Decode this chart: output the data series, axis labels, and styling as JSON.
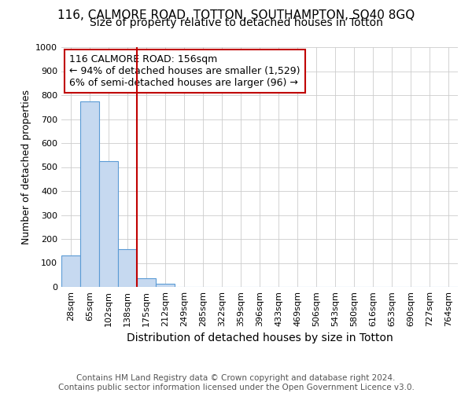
{
  "title": "116, CALMORE ROAD, TOTTON, SOUTHAMPTON, SO40 8GQ",
  "subtitle": "Size of property relative to detached houses in Totton",
  "xlabel": "Distribution of detached houses by size in Totton",
  "ylabel": "Number of detached properties",
  "footer": "Contains HM Land Registry data © Crown copyright and database right 2024.\nContains public sector information licensed under the Open Government Licence v3.0.",
  "categories": [
    "28sqm",
    "65sqm",
    "102sqm",
    "138sqm",
    "175sqm",
    "212sqm",
    "249sqm",
    "285sqm",
    "322sqm",
    "359sqm",
    "396sqm",
    "433sqm",
    "469sqm",
    "506sqm",
    "543sqm",
    "580sqm",
    "616sqm",
    "653sqm",
    "690sqm",
    "727sqm",
    "764sqm"
  ],
  "values": [
    130,
    775,
    525,
    158,
    37,
    12,
    0,
    0,
    0,
    0,
    0,
    0,
    0,
    0,
    0,
    0,
    0,
    0,
    0,
    0,
    0
  ],
  "bar_color": "#c6d9f0",
  "bar_edge_color": "#5b9bd5",
  "vline_x": 3.5,
  "vline_color": "#c00000",
  "annotation_line1": "116 CALMORE ROAD: 156sqm",
  "annotation_line2": "← 94% of detached houses are smaller (1,529)",
  "annotation_line3": "6% of semi-detached houses are larger (96) →",
  "annotation_box_color": "#ffffff",
  "annotation_box_edge": "#c00000",
  "ylim": [
    0,
    1000
  ],
  "yticks": [
    0,
    100,
    200,
    300,
    400,
    500,
    600,
    700,
    800,
    900,
    1000
  ],
  "title_fontsize": 11,
  "subtitle_fontsize": 10,
  "xlabel_fontsize": 10,
  "ylabel_fontsize": 9,
  "tick_fontsize": 8,
  "annot_fontsize": 9,
  "footer_fontsize": 7.5,
  "bg_color": "#ffffff",
  "grid_color": "#cccccc"
}
